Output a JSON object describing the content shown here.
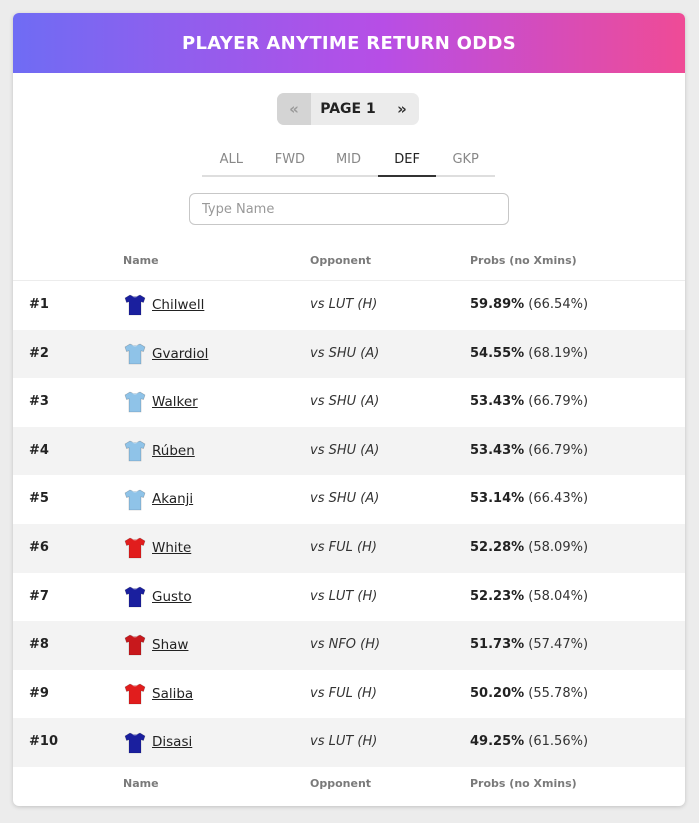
{
  "header": {
    "title": "PLAYER ANYTIME RETURN ODDS",
    "gradient_start": "#6f6cf4",
    "gradient_mid": "#b74ee6",
    "gradient_end": "#ef4b96"
  },
  "pager": {
    "prev": "«",
    "label": "PAGE 1",
    "next": "»"
  },
  "tabs": [
    {
      "label": "ALL"
    },
    {
      "label": "FWD"
    },
    {
      "label": "MID"
    },
    {
      "label": "DEF",
      "active": true
    },
    {
      "label": "GKP"
    }
  ],
  "search": {
    "placeholder": "Type Name",
    "value": ""
  },
  "columns": {
    "name": "Name",
    "opponent": "Opponent",
    "probs": "Probs (no Xmins)"
  },
  "rows": [
    {
      "rank": "#1",
      "name": "Chilwell",
      "shirt": "shirt-navy-icon",
      "shirt_color": "#1a1f9e",
      "opponent": "vs LUT (H)",
      "prob": "59.89%",
      "xmins": "(66.54%)"
    },
    {
      "rank": "#2",
      "name": "Gvardiol",
      "shirt": "shirt-skyblue-icon",
      "shirt_color": "#8fc3e8",
      "opponent": "vs SHU (A)",
      "prob": "54.55%",
      "xmins": "(68.19%)"
    },
    {
      "rank": "#3",
      "name": "Walker",
      "shirt": "shirt-skyblue-icon",
      "shirt_color": "#8fc3e8",
      "opponent": "vs SHU (A)",
      "prob": "53.43%",
      "xmins": "(66.79%)"
    },
    {
      "rank": "#4",
      "name": "Rúben",
      "shirt": "shirt-skyblue-icon",
      "shirt_color": "#8fc3e8",
      "opponent": "vs SHU (A)",
      "prob": "53.43%",
      "xmins": "(66.79%)"
    },
    {
      "rank": "#5",
      "name": "Akanji",
      "shirt": "shirt-skyblue-icon",
      "shirt_color": "#8fc3e8",
      "opponent": "vs SHU (A)",
      "prob": "53.14%",
      "xmins": "(66.43%)"
    },
    {
      "rank": "#6",
      "name": "White",
      "shirt": "shirt-red-icon",
      "shirt_color": "#e11d1d",
      "opponent": "vs FUL (H)",
      "prob": "52.28%",
      "xmins": "(58.09%)"
    },
    {
      "rank": "#7",
      "name": "Gusto",
      "shirt": "shirt-navy-icon",
      "shirt_color": "#1a1f9e",
      "opponent": "vs LUT (H)",
      "prob": "52.23%",
      "xmins": "(58.04%)"
    },
    {
      "rank": "#8",
      "name": "Shaw",
      "shirt": "shirt-darkred-icon",
      "shirt_color": "#c8181c",
      "opponent": "vs NFO (H)",
      "prob": "51.73%",
      "xmins": "(57.47%)"
    },
    {
      "rank": "#9",
      "name": "Saliba",
      "shirt": "shirt-red-icon",
      "shirt_color": "#e11d1d",
      "opponent": "vs FUL (H)",
      "prob": "50.20%",
      "xmins": "(55.78%)"
    },
    {
      "rank": "#10",
      "name": "Disasi",
      "shirt": "shirt-navy-icon",
      "shirt_color": "#1a1f9e",
      "opponent": "vs LUT (H)",
      "prob": "49.25%",
      "xmins": "(61.56%)"
    }
  ]
}
